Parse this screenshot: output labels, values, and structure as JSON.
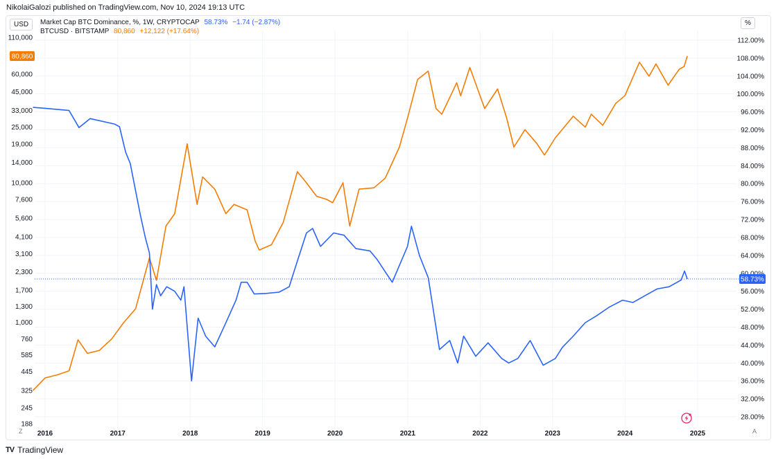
{
  "header": {
    "published": "NikolaiGalozi published on TradingView.com, Nov 10, 2024 19:13 UTC"
  },
  "units": {
    "left": "USD",
    "right": "%"
  },
  "legend": {
    "dominance": {
      "name": "Market Cap BTC Dominance, %, 1W, CRYPTOCAP",
      "value": "58.73%",
      "change": "−1.74 (−2.87%)"
    },
    "btc": {
      "name": "BTCUSD · BITSTAMP",
      "value": "80,860",
      "change": "+12,122 (+17.64%)"
    }
  },
  "badges": {
    "left_price": "80,860",
    "right_dom": "58.73%"
  },
  "footer": {
    "brand": "TradingView",
    "z_button": "Z",
    "a_button": "A"
  },
  "colors": {
    "btc": "#f57c00",
    "dominance": "#2962ff",
    "grid": "#f0f3fa"
  },
  "chart_data": {
    "type": "line",
    "x_ticks": [
      "2016",
      "2017",
      "2018",
      "2019",
      "2020",
      "2021",
      "2022",
      "2023",
      "2024",
      "2025"
    ],
    "left_axis": {
      "scale": "log",
      "unit": "USD",
      "ticks": [
        "110,000",
        "60,000",
        "45,000",
        "33,000",
        "25,000",
        "19,000",
        "14,000",
        "10,000",
        "7,600",
        "5,600",
        "4,100",
        "3,100",
        "2,300",
        "1,700",
        "1,300",
        "1,000",
        "760",
        "585",
        "445",
        "325",
        "245",
        "188"
      ],
      "tick_values": [
        110000,
        60000,
        45000,
        33000,
        25000,
        19000,
        14000,
        10000,
        7600,
        5600,
        4100,
        3100,
        2300,
        1700,
        1300,
        1000,
        760,
        585,
        445,
        325,
        245,
        188
      ]
    },
    "right_axis": {
      "scale": "linear",
      "unit": "%",
      "range": [
        26,
        114
      ],
      "ticks": [
        "112.00%",
        "108.00%",
        "104.00%",
        "100.00%",
        "96.00%",
        "92.00%",
        "88.00%",
        "84.00%",
        "80.00%",
        "76.00%",
        "72.00%",
        "68.00%",
        "64.00%",
        "60.00%",
        "56.00%",
        "52.00%",
        "48.00%",
        "44.00%",
        "40.00%",
        "36.00%",
        "32.00%",
        "28.00%"
      ],
      "tick_values": [
        112,
        108,
        104,
        100,
        96,
        92,
        88,
        84,
        80,
        76,
        72,
        68,
        64,
        60,
        56,
        52,
        48,
        44,
        40,
        36,
        32,
        28
      ]
    },
    "series": [
      {
        "name": "BTCUSD · BITSTAMP",
        "axis": "left",
        "x": [
          "2015-11-01",
          "2016-01-01",
          "2016-03-01",
          "2016-05-01",
          "2016-06-15",
          "2016-08-01",
          "2016-10-01",
          "2016-12-01",
          "2017-02-01",
          "2017-04-01",
          "2017-06-10",
          "2017-07-15",
          "2017-09-01",
          "2017-10-15",
          "2017-12-17",
          "2018-02-05",
          "2018-03-05",
          "2018-05-05",
          "2018-06-30",
          "2018-08-10",
          "2018-10-15",
          "2018-11-25",
          "2018-12-15",
          "2019-02-15",
          "2019-04-15",
          "2019-06-25",
          "2019-08-10",
          "2019-09-30",
          "2019-11-20",
          "2019-12-20",
          "2020-02-10",
          "2020-03-15",
          "2020-05-01",
          "2020-07-15",
          "2020-09-10",
          "2020-11-20",
          "2020-12-31",
          "2021-02-20",
          "2021-04-14",
          "2021-05-24",
          "2021-06-22",
          "2021-09-05",
          "2021-09-25",
          "2021-11-10",
          "2022-01-24",
          "2022-03-30",
          "2022-05-15",
          "2022-06-20",
          "2022-08-15",
          "2022-10-15",
          "2022-11-21",
          "2023-01-15",
          "2023-03-20",
          "2023-04-15",
          "2023-06-15",
          "2023-07-15",
          "2023-09-11",
          "2023-11-15",
          "2023-12-31",
          "2024-03-14",
          "2024-05-01",
          "2024-06-05",
          "2024-08-05",
          "2024-09-30",
          "2024-10-25",
          "2024-11-10"
        ],
        "y": [
          325,
          400,
          420,
          450,
          750,
          600,
          630,
          760,
          1000,
          1250,
          2900,
          2000,
          4900,
          6000,
          19000,
          7000,
          11000,
          9000,
          6000,
          7000,
          6400,
          3800,
          3300,
          3600,
          5200,
          12000,
          10000,
          8000,
          7600,
          7200,
          10000,
          4900,
          9000,
          9200,
          10800,
          18000,
          29000,
          55000,
          63000,
          34000,
          31000,
          52000,
          42000,
          67000,
          34000,
          47000,
          29000,
          18000,
          24000,
          19000,
          15800,
          21000,
          27000,
          30000,
          25000,
          31000,
          25800,
          37000,
          42000,
          73000,
          58000,
          71000,
          50000,
          65000,
          68000,
          80860
        ]
      },
      {
        "name": "Market Cap BTC Dominance, %, 1W, CRYPTOCAP",
        "axis": "right",
        "x": [
          "2015-11-01",
          "2016-01-01",
          "2016-05-01",
          "2016-06-20",
          "2016-08-15",
          "2016-12-15",
          "2017-01-10",
          "2017-02-10",
          "2017-03-05",
          "2017-03-25",
          "2017-04-25",
          "2017-05-20",
          "2017-06-10",
          "2017-06-25",
          "2017-07-15",
          "2017-08-05",
          "2017-09-05",
          "2017-10-15",
          "2017-11-15",
          "2017-12-01",
          "2018-01-08",
          "2018-02-10",
          "2018-03-20",
          "2018-05-05",
          "2018-06-25",
          "2018-08-20",
          "2018-09-15",
          "2018-10-15",
          "2018-11-20",
          "2019-01-15",
          "2019-03-25",
          "2019-05-15",
          "2019-06-20",
          "2019-08-10",
          "2019-09-10",
          "2019-10-20",
          "2019-12-25",
          "2020-02-15",
          "2020-04-15",
          "2020-06-25",
          "2020-08-01",
          "2020-09-15",
          "2020-10-15",
          "2020-12-31",
          "2021-01-20",
          "2021-03-01",
          "2021-04-15",
          "2021-06-10",
          "2021-08-01",
          "2021-09-10",
          "2021-10-10",
          "2021-12-10",
          "2022-02-10",
          "2022-04-20",
          "2022-05-25",
          "2022-07-10",
          "2022-09-10",
          "2022-11-15",
          "2023-01-15",
          "2023-02-20",
          "2023-04-15",
          "2023-06-15",
          "2023-08-10",
          "2023-10-15",
          "2023-12-20",
          "2024-02-10",
          "2024-04-10",
          "2024-06-10",
          "2024-08-10",
          "2024-10-10",
          "2024-10-27",
          "2024-11-10"
        ],
        "y": [
          97,
          96.8,
          96.3,
          92.5,
          94.5,
          93.3,
          92.7,
          87,
          84.5,
          80,
          73,
          68,
          64.5,
          52,
          57.5,
          55,
          57,
          56,
          54,
          57,
          36,
          50,
          46,
          43.6,
          48.5,
          54,
          58,
          58,
          55.4,
          55.5,
          55.8,
          57,
          62,
          69,
          70,
          66,
          69,
          68.5,
          65.5,
          65,
          63,
          60,
          58,
          66,
          70.5,
          64,
          59,
          43,
          45,
          40,
          46,
          41.5,
          44.5,
          41,
          40,
          41,
          45,
          39.5,
          41,
          43.5,
          46,
          49,
          50.5,
          52.5,
          54,
          53.5,
          55,
          56.5,
          57,
          58.5,
          60.5,
          58.73
        ]
      }
    ]
  }
}
